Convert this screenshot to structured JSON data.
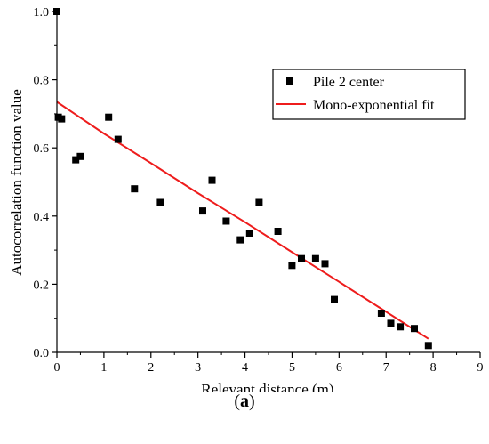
{
  "chart_data": {
    "type": "scatter",
    "xlabel": "Relevant distance (m)",
    "ylabel": "Autocorrelation function value",
    "xlim": [
      0,
      9
    ],
    "ylim": [
      0,
      1.0
    ],
    "xticks": [
      "0",
      "1",
      "2",
      "3",
      "4",
      "5",
      "6",
      "7",
      "8",
      "9"
    ],
    "yticks": [
      "0.0",
      "0.2",
      "0.4",
      "0.6",
      "0.8",
      "1.0"
    ],
    "legend_position": "top-right",
    "series": [
      {
        "name": "Pile 2 center",
        "kind": "scatter",
        "color": "#000000",
        "marker": "square",
        "x": [
          0.0,
          0.03,
          0.1,
          0.4,
          0.5,
          1.1,
          1.3,
          1.65,
          2.2,
          3.1,
          3.3,
          3.6,
          3.9,
          4.1,
          4.3,
          4.7,
          5.0,
          5.2,
          5.5,
          5.7,
          5.9,
          6.9,
          7.1,
          7.3,
          7.6,
          7.9
        ],
        "y": [
          1.0,
          0.69,
          0.685,
          0.565,
          0.575,
          0.69,
          0.625,
          0.48,
          0.44,
          0.415,
          0.505,
          0.385,
          0.33,
          0.35,
          0.44,
          0.355,
          0.255,
          0.275,
          0.275,
          0.26,
          0.155,
          0.115,
          0.085,
          0.075,
          0.07,
          0.02
        ]
      },
      {
        "name": "Mono-exponential fit",
        "kind": "line",
        "color": "#ee1c1c",
        "x": [
          0.0,
          1.0,
          2.0,
          3.0,
          4.0,
          5.0,
          6.0,
          7.0,
          7.9
        ],
        "y": [
          0.735,
          0.642,
          0.555,
          0.467,
          0.382,
          0.294,
          0.207,
          0.119,
          0.04
        ]
      }
    ]
  },
  "caption": {
    "open": "(",
    "letter": "a",
    "close": ")"
  }
}
